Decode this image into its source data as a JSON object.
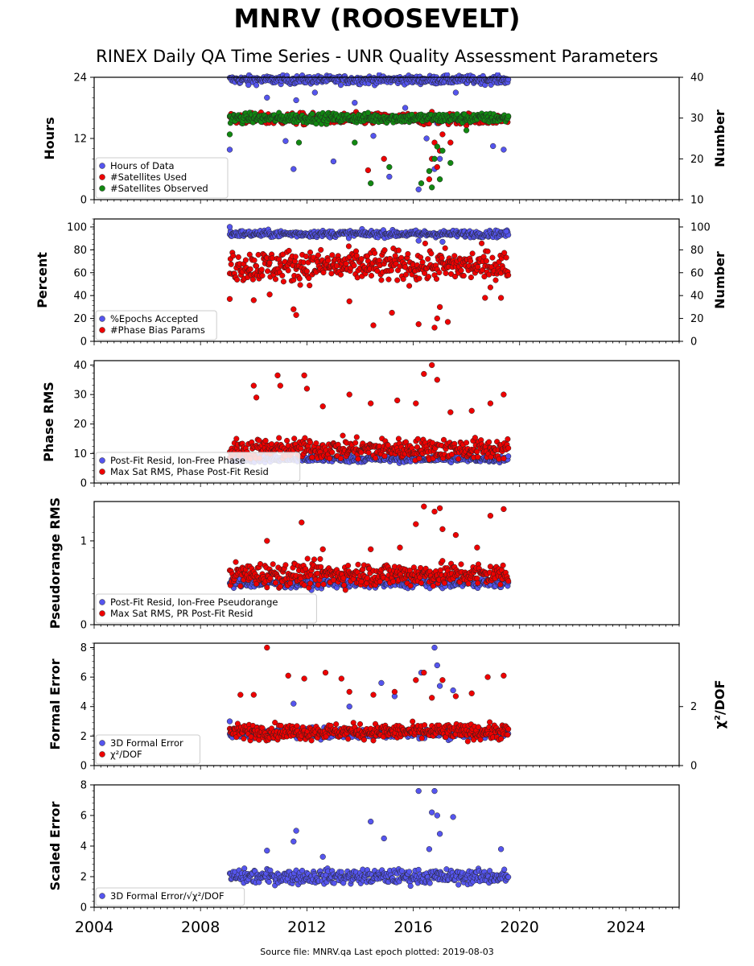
{
  "title": "MNRV (ROOSEVELT)",
  "subtitle": "RINEX Daily QA Time Series - UNR Quality Assessment Parameters",
  "footer": "Source file: MNRV.qa Last epoch plotted: 2019-08-03",
  "colors": {
    "blue": "#5555ee",
    "red": "#ee0000",
    "green": "#118811",
    "edge": "#222222"
  },
  "chart_data": [
    {
      "type": "scatter",
      "ylabel": "Hours",
      "y2label": "Number",
      "xlim": [
        2004,
        2026
      ],
      "ylim": [
        0,
        24
      ],
      "y2lim": [
        10,
        40
      ],
      "yticks": [
        "0",
        "12",
        "24"
      ],
      "y2ticks": [
        "10",
        "20",
        "30",
        "40"
      ],
      "grid": false,
      "legend_position": "lower-left",
      "series": [
        {
          "name": "Hours of Data",
          "axis": "left",
          "color": "blue",
          "x": [
            2009.1,
            2009.8,
            2010.5,
            2011.2,
            2011.5,
            2011.6,
            2012.3,
            2013.0,
            2013.8,
            2014.5,
            2015.1,
            2015.7,
            2016.2,
            2016.5,
            2016.8,
            2016.9,
            2017.0,
            2017.6,
            2018.4,
            2019.0,
            2019.4
          ],
          "band": {
            "x0": 2009.1,
            "x1": 2019.6,
            "center": 23.5,
            "spread": 0.7
          },
          "outliers_y": [
            9.8,
            22.5,
            20.0,
            11.5,
            6.0,
            19.5,
            21.0,
            7.5,
            19.0,
            12.5,
            4.5,
            18.0,
            2.0,
            12.0,
            6.0,
            15.0,
            8.0,
            21.0,
            16.0,
            10.5,
            9.8
          ]
        },
        {
          "name": "#Satellites Used",
          "axis": "right",
          "color": "red",
          "band": {
            "x0": 2009.1,
            "x1": 2019.6,
            "center": 29.8,
            "spread": 1.2
          },
          "x": [
            2014.3,
            2014.9,
            2016.6,
            2016.7,
            2016.8,
            2016.9,
            2017.0,
            2017.1,
            2017.4
          ],
          "outliers_y": [
            17.2,
            20.0,
            15.0,
            20.0,
            24.0,
            18.0,
            22.0,
            26.0,
            24.0
          ]
        },
        {
          "name": "#Satellites Observed",
          "axis": "right",
          "color": "green",
          "band": {
            "x0": 2009.1,
            "x1": 2019.6,
            "center": 30.0,
            "spread": 1.0
          },
          "x": [
            2009.1,
            2011.7,
            2013.8,
            2014.4,
            2015.1,
            2016.3,
            2016.6,
            2016.7,
            2016.8,
            2016.9,
            2017.0,
            2017.1,
            2017.4,
            2018.0
          ],
          "outliers_y": [
            26.0,
            24.0,
            24.0,
            14.0,
            18.0,
            14.0,
            17.0,
            13.0,
            20.0,
            23.0,
            15.0,
            22.0,
            19.0,
            27.0
          ]
        }
      ]
    },
    {
      "type": "scatter",
      "ylabel": "Percent",
      "y2label": "Number",
      "xlim": [
        2004,
        2026
      ],
      "ylim": [
        0,
        107
      ],
      "y2lim": [
        0,
        107
      ],
      "yticks": [
        "0",
        "20",
        "40",
        "60",
        "80",
        "100"
      ],
      "y2ticks": [
        "0",
        "20",
        "40",
        "60",
        "80",
        "100"
      ],
      "grid": false,
      "legend_position": "lower-left",
      "series": [
        {
          "name": "%Epochs Accepted",
          "axis": "left",
          "color": "blue",
          "band": {
            "x0": 2009.1,
            "x1": 2019.6,
            "center": 94,
            "spread": 2.5
          },
          "x": [
            2009.1,
            2016.2,
            2017.1,
            2019.5
          ],
          "outliers_y": [
            100,
            88,
            87,
            96
          ]
        },
        {
          "name": "#Phase Bias Params",
          "axis": "right",
          "color": "red",
          "band": {
            "x0": 2009.1,
            "x1": 2019.6,
            "center": 66,
            "spread": 12
          },
          "x": [
            2009.1,
            2010.0,
            2010.6,
            2011.5,
            2011.6,
            2013.6,
            2014.5,
            2015.2,
            2016.2,
            2016.8,
            2016.9,
            2017.0,
            2017.3,
            2018.7,
            2019.3
          ],
          "outliers_y": [
            37,
            36,
            41,
            28,
            23,
            35,
            14,
            25,
            15,
            12,
            20,
            30,
            17,
            38,
            38
          ]
        }
      ]
    },
    {
      "type": "scatter",
      "ylabel": "Phase RMS",
      "xlim": [
        2004,
        2026
      ],
      "ylim": [
        0,
        41.5
      ],
      "yticks": [
        "0",
        "10",
        "20",
        "30",
        "40"
      ],
      "grid": false,
      "legend_position": "lower-left",
      "series": [
        {
          "name": "Post-Fit Resid, Ion-Free Phase",
          "axis": "left",
          "color": "blue",
          "band": {
            "x0": 2009.1,
            "x1": 2019.6,
            "center": 8.2,
            "spread": 1.0
          },
          "x": [],
          "outliers_y": []
        },
        {
          "name": "Max Sat RMS, Phase Post-Fit Resid",
          "axis": "left",
          "color": "red",
          "band": {
            "x0": 2009.1,
            "x1": 2019.6,
            "center": 11.5,
            "spread": 3.0
          },
          "x": [
            2010.0,
            2010.1,
            2010.9,
            2011.0,
            2011.9,
            2012.0,
            2012.6,
            2013.6,
            2014.4,
            2015.4,
            2016.1,
            2016.4,
            2016.7,
            2016.9,
            2017.4,
            2018.2,
            2018.9,
            2019.4
          ],
          "outliers_y": [
            33,
            29,
            36.5,
            33,
            36.5,
            32,
            26,
            30,
            27,
            28,
            27,
            37,
            40,
            35,
            24,
            24.5,
            27,
            30
          ]
        }
      ]
    },
    {
      "type": "scatter",
      "ylabel": "Pseudorange RMS",
      "xlim": [
        2004,
        2026
      ],
      "ylim": [
        0,
        1.47
      ],
      "yticks": [
        "0",
        "1"
      ],
      "grid": false,
      "legend_position": "lower-left",
      "series": [
        {
          "name": "Post-Fit Resid, Ion-Free Pseudorange",
          "axis": "left",
          "color": "blue",
          "band": {
            "x0": 2009.1,
            "x1": 2019.6,
            "center": 0.5,
            "spread": 0.05
          },
          "x": [],
          "outliers_y": []
        },
        {
          "name": "Max Sat RMS, PR Post-Fit Resid",
          "axis": "left",
          "color": "red",
          "band": {
            "x0": 2009.1,
            "x1": 2019.6,
            "center": 0.6,
            "spread": 0.12
          },
          "x": [
            2010.5,
            2011.8,
            2012.6,
            2014.4,
            2015.5,
            2016.1,
            2016.4,
            2016.8,
            2017.0,
            2017.1,
            2017.6,
            2018.4,
            2018.9,
            2019.4
          ],
          "outliers_y": [
            1.0,
            1.22,
            0.9,
            0.9,
            0.92,
            1.2,
            1.41,
            1.35,
            1.39,
            1.14,
            1.07,
            0.92,
            1.3,
            1.38
          ]
        }
      ]
    },
    {
      "type": "scatter",
      "ylabel": "Formal Error",
      "y2label": "χ²/DOF",
      "xlim": [
        2004,
        2026
      ],
      "ylim": [
        0,
        8.3
      ],
      "y2lim": [
        0,
        4.15
      ],
      "yticks": [
        "0",
        "2",
        "4",
        "6",
        "8"
      ],
      "y2ticks": [
        "0",
        "2"
      ],
      "grid": false,
      "legend_position": "lower-left",
      "series": [
        {
          "name": "3D Formal Error",
          "axis": "left",
          "color": "blue",
          "band": {
            "x0": 2009.1,
            "x1": 2019.6,
            "center": 2.2,
            "spread": 0.3
          },
          "x": [
            2009.1,
            2011.5,
            2013.6,
            2014.8,
            2015.3,
            2016.3,
            2016.8,
            2016.9,
            2017.0,
            2017.5
          ],
          "outliers_y": [
            3.0,
            4.2,
            4.0,
            5.6,
            4.7,
            6.3,
            8.0,
            6.8,
            5.4,
            5.1
          ]
        },
        {
          "name": "χ²/DOF",
          "axis": "right",
          "color": "red",
          "band": {
            "x0": 2009.1,
            "x1": 2019.6,
            "center": 1.15,
            "spread": 0.22
          },
          "x": [
            2009.5,
            2010.0,
            2010.5,
            2011.3,
            2011.9,
            2012.7,
            2013.3,
            2013.6,
            2014.5,
            2015.3,
            2016.1,
            2016.4,
            2016.7,
            2017.1,
            2017.6,
            2018.2,
            2018.8,
            2019.4
          ],
          "outliers_y": [
            2.4,
            2.4,
            4.0,
            3.05,
            2.95,
            3.15,
            2.95,
            2.5,
            2.4,
            2.5,
            2.9,
            3.15,
            2.3,
            2.9,
            2.35,
            2.45,
            3.0,
            3.05
          ]
        }
      ]
    },
    {
      "type": "scatter",
      "ylabel": "Scaled Error",
      "xlim": [
        2004,
        2026
      ],
      "ylim": [
        0,
        8
      ],
      "yticks": [
        "0",
        "2",
        "4",
        "6",
        "8"
      ],
      "xticks": [
        "2004",
        "2008",
        "2012",
        "2016",
        "2020",
        "2024"
      ],
      "grid": false,
      "legend_position": "lower-left",
      "series": [
        {
          "name": "3D Formal Error/√χ²/DOF",
          "axis": "left",
          "color": "blue",
          "band": {
            "x0": 2009.1,
            "x1": 2019.6,
            "center": 2.0,
            "spread": 0.4
          },
          "x": [
            2010.5,
            2011.5,
            2011.6,
            2012.6,
            2014.4,
            2014.9,
            2016.2,
            2016.6,
            2016.7,
            2016.8,
            2016.9,
            2017.0,
            2017.5,
            2019.3
          ],
          "outliers_y": [
            3.7,
            4.3,
            5.0,
            3.3,
            5.6,
            4.5,
            7.6,
            3.8,
            6.2,
            7.6,
            6.0,
            4.8,
            5.9,
            3.8
          ]
        }
      ]
    }
  ]
}
